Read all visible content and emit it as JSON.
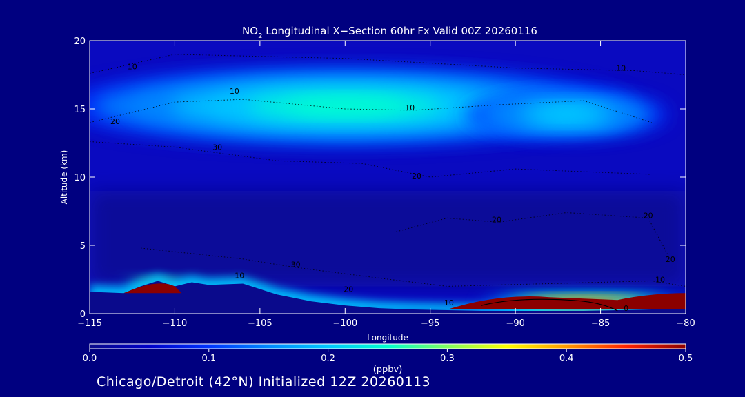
{
  "chart_data": {
    "type": "heatmap",
    "title_prefix": "NO",
    "title_subscript": "2",
    "title_rest": " Longitudinal X−Section 60hr  Fx Valid 00Z 20260116",
    "xlabel": "Longitude",
    "ylabel": "Altitude (km)",
    "xlim": [
      -115,
      -80
    ],
    "ylim": [
      0,
      20
    ],
    "x_ticks": [
      -115,
      -110,
      -105,
      -100,
      -95,
      -90,
      -85,
      -80
    ],
    "x_tick_labels": [
      "−115",
      "−110",
      "−105",
      "−100",
      "−95",
      "−90",
      "−85",
      "−80"
    ],
    "y_ticks": [
      0,
      5,
      10,
      15,
      20
    ],
    "y_tick_labels": [
      "0",
      "5",
      "10",
      "15",
      "20"
    ],
    "colorbar": {
      "label": "(ppbv)",
      "range": [
        0.0,
        0.5
      ],
      "ticks": [
        0.0,
        0.1,
        0.2,
        0.3,
        0.4,
        0.5
      ],
      "tick_labels": [
        "0.0",
        "0.1",
        "0.2",
        "0.3",
        "0.4",
        "0.5"
      ]
    },
    "terrain_km": [
      {
        "lon": -115,
        "alt": 1.6
      },
      {
        "lon": -113,
        "alt": 1.5
      },
      {
        "lon": -112,
        "alt": 2.0
      },
      {
        "lon": -111,
        "alt": 2.4
      },
      {
        "lon": -110,
        "alt": 2.0
      },
      {
        "lon": -109,
        "alt": 2.3
      },
      {
        "lon": -108,
        "alt": 2.1
      },
      {
        "lon": -106,
        "alt": 2.2
      },
      {
        "lon": -104,
        "alt": 1.4
      },
      {
        "lon": -102,
        "alt": 0.9
      },
      {
        "lon": -100,
        "alt": 0.6
      },
      {
        "lon": -98,
        "alt": 0.4
      },
      {
        "lon": -96,
        "alt": 0.3
      },
      {
        "lon": -94,
        "alt": 0.25
      },
      {
        "lon": -92,
        "alt": 0.2
      },
      {
        "lon": -90,
        "alt": 0.2
      },
      {
        "lon": -88,
        "alt": 0.2
      },
      {
        "lon": -86,
        "alt": 0.2
      },
      {
        "lon": -84,
        "alt": 0.25
      },
      {
        "lon": -82,
        "alt": 0.3
      },
      {
        "lon": -80,
        "alt": 0.3
      }
    ],
    "no2_layers": [
      {
        "name": "upper tropospheric maximum",
        "center_lon": -100,
        "center_alt": 15.2,
        "half_width_lon": 17,
        "half_width_alt": 2.8,
        "peak_ppbv": 0.26
      },
      {
        "name": "eastern upper lobe",
        "center_lon": -87,
        "center_alt": 14.6,
        "half_width_lon": 6,
        "half_width_alt": 1.6,
        "peak_ppbv": 0.22
      },
      {
        "name": "boundary layer plume east",
        "center_lon": -86,
        "center_alt": 0.6,
        "half_width_lon": 6,
        "half_width_alt": 0.8,
        "peak_ppbv": 0.5
      },
      {
        "name": "boundary layer plume west",
        "center_lon": -111,
        "center_alt": 2.2,
        "half_width_lon": 2,
        "half_width_alt": 0.5,
        "peak_ppbv": 0.45
      }
    ],
    "contour_labels": [
      {
        "text": "10",
        "lon": -112.5,
        "alt": 17.9
      },
      {
        "text": "20",
        "lon": -113.5,
        "alt": 13.9
      },
      {
        "text": "30",
        "lon": -107.5,
        "alt": 12.0
      },
      {
        "text": "10",
        "lon": -106.5,
        "alt": 16.1
      },
      {
        "text": "10",
        "lon": -96.2,
        "alt": 14.9
      },
      {
        "text": "10",
        "lon": -83.8,
        "alt": 17.8
      },
      {
        "text": "20",
        "lon": -95.8,
        "alt": 9.9
      },
      {
        "text": "20",
        "lon": -91.1,
        "alt": 6.7
      },
      {
        "text": "20",
        "lon": -82.2,
        "alt": 7.0
      },
      {
        "text": "20",
        "lon": -80.9,
        "alt": 3.8
      },
      {
        "text": "30",
        "lon": -102.9,
        "alt": 3.4
      },
      {
        "text": "10",
        "lon": -106.2,
        "alt": 2.6
      },
      {
        "text": "20",
        "lon": -99.8,
        "alt": 1.6
      },
      {
        "text": "10",
        "lon": -93.9,
        "alt": 0.6
      },
      {
        "text": "10",
        "lon": -81.5,
        "alt": 2.3
      },
      {
        "text": "0",
        "lon": -83.5,
        "alt": 0.2
      }
    ]
  },
  "footer": {
    "caption": "Chicago/Detroit (42°N) Initialized 12Z 20260113"
  },
  "colors": {
    "background": "#000080",
    "colormap": [
      "#0a0a8c",
      "#0000c8",
      "#0033ff",
      "#0088ff",
      "#00c8ff",
      "#00ffd0",
      "#80ff60",
      "#ffff00",
      "#ff9900",
      "#ff2200",
      "#8b0000"
    ]
  }
}
